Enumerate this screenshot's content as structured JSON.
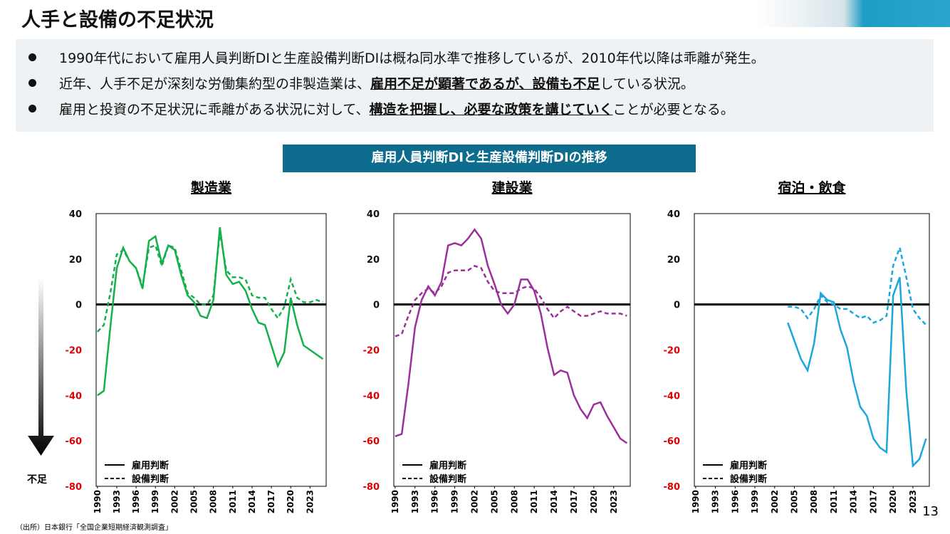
{
  "slide": {
    "title": "人手と設備の不足状況",
    "bullets": [
      [
        {
          "text": "1990年代において雇用人員判断DIと生産設備判断DIは概ね同水準で推移しているが、2010年代以降は乖離が発生。"
        }
      ],
      [
        {
          "text": "近年、人手不足が深刻な労働集約型の非製造業は、"
        },
        {
          "text": "雇用不足が顕著であるが、設備も不足",
          "strong": true
        },
        {
          "text": "している状況。"
        }
      ],
      [
        {
          "text": "雇用と投資の不足状況に乖離がある状況に対して、"
        },
        {
          "text": "構造を把握し、必要な政策を講じていく",
          "strong": true
        },
        {
          "text": "ことが必要となる。"
        }
      ]
    ],
    "banner": "雇用人員判断DIと生産設備判断DIの推移",
    "arrow_label": "不足",
    "source": "（出所）日本銀行「全国企業短期経済観測調査」",
    "page": "13"
  },
  "chart_data": [
    {
      "type": "line",
      "title": "製造業",
      "x": [
        1990,
        1991,
        1992,
        1993,
        1994,
        1995,
        1996,
        1997,
        1998,
        1999,
        2000,
        2001,
        2002,
        2003,
        2004,
        2005,
        2006,
        2007,
        2008,
        2009,
        2010,
        2011,
        2012,
        2013,
        2014,
        2015,
        2016,
        2017,
        2018,
        2019,
        2020,
        2021,
        2022,
        2023,
        2024,
        2025
      ],
      "series": [
        {
          "name": "雇用判断",
          "color": "#16b04b",
          "dash": false,
          "values": [
            -40,
            -38,
            -10,
            16,
            25,
            19,
            16,
            7,
            28,
            30,
            18,
            26,
            24,
            13,
            4,
            1,
            -5,
            -6,
            2,
            34,
            13,
            9,
            10,
            6,
            -2,
            -8,
            -9,
            -18,
            -27,
            -21,
            3,
            -9,
            -18,
            -20,
            -22,
            -24
          ]
        },
        {
          "name": "設備判断",
          "color": "#16b04b",
          "dash": true,
          "values": [
            -12,
            -9,
            5,
            22,
            24,
            19,
            16,
            8,
            25,
            26,
            17,
            26,
            25,
            15,
            5,
            3,
            0,
            0,
            4,
            32,
            15,
            12,
            12,
            11,
            4,
            3,
            3,
            -2,
            -6,
            -1,
            11,
            3,
            1,
            1,
            2,
            1
          ]
        }
      ],
      "xlim": [
        1989.8,
        2025.5
      ],
      "xticks": [
        1990,
        1993,
        1996,
        1999,
        2002,
        2005,
        2008,
        2011,
        2014,
        2017,
        2020,
        2023
      ],
      "ylim": [
        -80,
        40
      ],
      "yticks": [
        -80,
        -60,
        -40,
        -20,
        0,
        20,
        40
      ],
      "negative_tick_color": "#e00000",
      "legend": "lower left"
    },
    {
      "type": "line",
      "title": "建設業",
      "x": [
        1990,
        1991,
        1992,
        1993,
        1994,
        1995,
        1996,
        1997,
        1998,
        1999,
        2000,
        2001,
        2002,
        2003,
        2004,
        2005,
        2006,
        2007,
        2008,
        2009,
        2010,
        2011,
        2012,
        2013,
        2014,
        2015,
        2016,
        2017,
        2018,
        2019,
        2020,
        2021,
        2022,
        2023,
        2024,
        2025
      ],
      "series": [
        {
          "name": "雇用判断",
          "color": "#9b2f9b",
          "dash": false,
          "values": [
            -58,
            -57,
            -35,
            -10,
            2,
            8,
            4,
            10,
            26,
            27,
            26,
            29,
            33,
            29,
            17,
            9,
            0,
            -4,
            0,
            11,
            11,
            6,
            -4,
            -19,
            -31,
            -29,
            -30,
            -40,
            -46,
            -50,
            -44,
            -43,
            -49,
            -54,
            -59,
            -61
          ]
        },
        {
          "name": "設備判断",
          "color": "#9b2f9b",
          "dash": true,
          "values": [
            -14,
            -13,
            -5,
            2,
            5,
            7,
            5,
            8,
            14,
            15,
            15,
            15,
            17,
            16,
            10,
            6,
            5,
            5,
            5,
            7,
            8,
            7,
            3,
            -2,
            -6,
            -3,
            -1,
            -3,
            -5,
            -5,
            -4,
            -3,
            -4,
            -4,
            -4,
            -5
          ]
        }
      ],
      "xlim": [
        1989.8,
        2025.5
      ],
      "xticks": [
        1990,
        1993,
        1996,
        1999,
        2002,
        2005,
        2008,
        2011,
        2014,
        2017,
        2020,
        2023
      ],
      "ylim": [
        -80,
        40
      ],
      "yticks": [
        -80,
        -60,
        -40,
        -20,
        0,
        20,
        40
      ],
      "negative_tick_color": "#e00000",
      "legend": "lower left"
    },
    {
      "type": "line",
      "title": "宿泊・飲食",
      "x": [
        1990,
        1991,
        1992,
        1993,
        1994,
        1995,
        1996,
        1997,
        1998,
        1999,
        2000,
        2001,
        2002,
        2003,
        2004,
        2005,
        2006,
        2007,
        2008,
        2009,
        2010,
        2011,
        2012,
        2013,
        2014,
        2015,
        2016,
        2017,
        2018,
        2019,
        2020,
        2021,
        2022,
        2023,
        2024,
        2025
      ],
      "series": [
        {
          "name": "雇用判断",
          "color": "#1aa7dc",
          "dash": false,
          "values": [
            null,
            null,
            null,
            null,
            null,
            null,
            null,
            null,
            null,
            null,
            null,
            null,
            null,
            null,
            -8,
            -16,
            -24,
            -29,
            -17,
            5,
            2,
            1,
            -11,
            -19,
            -34,
            -45,
            -49,
            -59,
            -63,
            -65,
            4,
            12,
            -38,
            -71,
            -68,
            -59
          ]
        },
        {
          "name": "設備判断",
          "color": "#1aa7dc",
          "dash": true,
          "values": [
            null,
            null,
            null,
            null,
            null,
            null,
            null,
            null,
            null,
            null,
            null,
            null,
            null,
            null,
            -1,
            -1,
            -2,
            -6,
            -2,
            4,
            1,
            0,
            -2,
            -2,
            -4,
            -6,
            -5,
            -8,
            -7,
            -5,
            17,
            25,
            12,
            -2,
            -6,
            -9
          ]
        }
      ],
      "xlim": [
        1989.8,
        2025.5
      ],
      "xticks": [
        1990,
        1993,
        1996,
        1999,
        2002,
        2005,
        2008,
        2011,
        2014,
        2017,
        2020,
        2023
      ],
      "ylim": [
        -80,
        40
      ],
      "yticks": [
        -80,
        -60,
        -40,
        -20,
        0,
        20,
        40
      ],
      "negative_tick_color": "#e00000",
      "legend": "lower left"
    }
  ]
}
